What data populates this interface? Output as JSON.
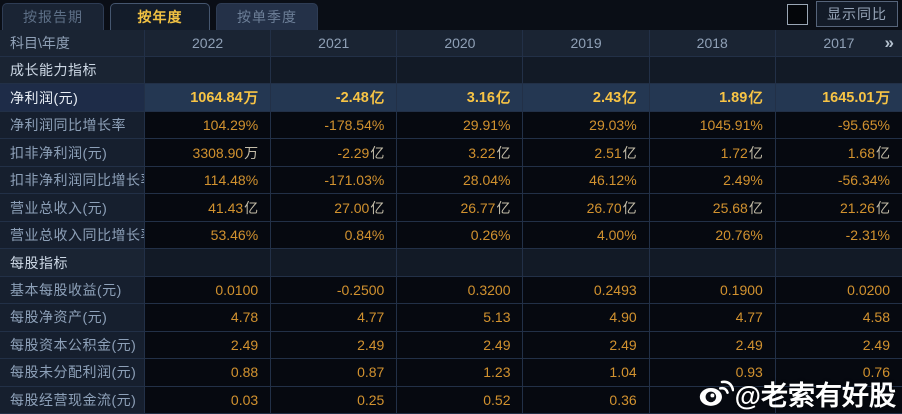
{
  "tabs": [
    {
      "label": "按报告期",
      "active": false
    },
    {
      "label": "按年度",
      "active": true
    },
    {
      "label": "按单季度",
      "active": false
    }
  ],
  "controls": {
    "show_yoy_label": "显示同比",
    "checkbox_checked": false
  },
  "table": {
    "corner_label": "科目\\年度",
    "year_columns": [
      "2022",
      "2021",
      "2020",
      "2019",
      "2018",
      "2017"
    ],
    "more_columns_icon": "»",
    "rows": [
      {
        "label": "成长能力指标",
        "type": "section",
        "values": [
          "",
          "",
          "",
          "",
          "",
          ""
        ]
      },
      {
        "label": "净利润(元)",
        "type": "highlight",
        "values": [
          "1064.84万",
          "-2.48亿",
          "3.16亿",
          "2.43亿",
          "1.89亿",
          "1645.01万"
        ]
      },
      {
        "label": "净利润同比增长率",
        "type": "data",
        "values": [
          "104.29%",
          "-178.54%",
          "29.91%",
          "29.03%",
          "1045.91%",
          "-95.65%"
        ]
      },
      {
        "label": "扣非净利润(元)",
        "type": "data",
        "values": [
          "3308.90万",
          "-2.29亿",
          "3.22亿",
          "2.51亿",
          "1.72亿",
          "1.68亿"
        ]
      },
      {
        "label": "扣非净利润同比增长率",
        "type": "data",
        "values": [
          "114.48%",
          "-171.03%",
          "28.04%",
          "46.12%",
          "2.49%",
          "-56.34%"
        ]
      },
      {
        "label": "营业总收入(元)",
        "type": "data",
        "values": [
          "41.43亿",
          "27.00亿",
          "26.77亿",
          "26.70亿",
          "25.68亿",
          "21.26亿"
        ]
      },
      {
        "label": "营业总收入同比增长率",
        "type": "data",
        "values": [
          "53.46%",
          "0.84%",
          "0.26%",
          "4.00%",
          "20.76%",
          "-2.31%"
        ]
      },
      {
        "label": "每股指标",
        "type": "section",
        "values": [
          "",
          "",
          "",
          "",
          "",
          ""
        ]
      },
      {
        "label": "基本每股收益(元)",
        "type": "data",
        "values": [
          "0.0100",
          "-0.2500",
          "0.3200",
          "0.2493",
          "0.1900",
          "0.0200"
        ]
      },
      {
        "label": "每股净资产(元)",
        "type": "data",
        "values": [
          "4.78",
          "4.77",
          "5.13",
          "4.90",
          "4.77",
          "4.58"
        ]
      },
      {
        "label": "每股资本公积金(元)",
        "type": "data",
        "values": [
          "2.49",
          "2.49",
          "2.49",
          "2.49",
          "2.49",
          "2.49"
        ]
      },
      {
        "label": "每股未分配利润(元)",
        "type": "data",
        "values": [
          "0.88",
          "0.87",
          "1.23",
          "1.04",
          "0.93",
          "0.76"
        ]
      },
      {
        "label": "每股经营现金流(元)",
        "type": "data",
        "values": [
          "0.03",
          "0.25",
          "0.52",
          "0.36",
          "",
          ""
        ]
      }
    ]
  },
  "watermark": {
    "text": "@老索有好股",
    "icon": "weibo-icon"
  },
  "colors": {
    "value_gold": "#d2922f",
    "highlight_gold": "#f8c445",
    "active_tab_text": "#f2c243",
    "highlight_row_bg": "#243752",
    "header_bg": "#1a2433",
    "data_cell_bg": "#060910",
    "grid_border": "#223047"
  }
}
